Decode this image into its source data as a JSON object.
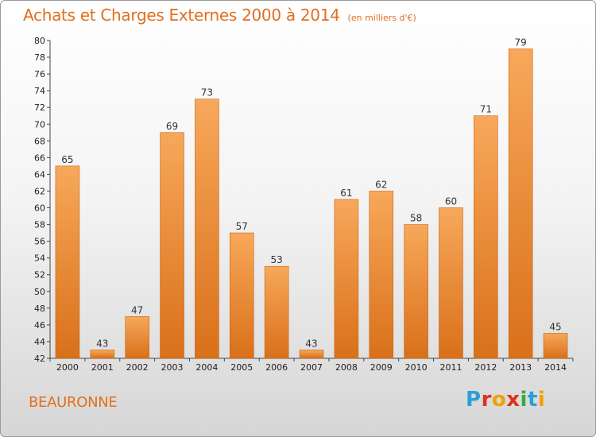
{
  "header": {
    "title": "Achats et Charges Externes 2000 à 2014",
    "subtitle": "(en milliers d'€)"
  },
  "footer": {
    "place": "BEAURONNE",
    "brand_letters": [
      "P",
      "r",
      "o",
      "x",
      "i",
      "t",
      "i"
    ],
    "brand_colors": [
      "#2a9fd8",
      "#e03020",
      "#f0a000",
      "#e03020",
      "#3aa83a",
      "#2a9fd8",
      "#f0a000"
    ]
  },
  "colors": {
    "bar_light": "#f7a85a",
    "bar_dark": "#d9701a"
  },
  "chart_data": {
    "type": "bar",
    "categories": [
      "2000",
      "2001",
      "2002",
      "2003",
      "2004",
      "2005",
      "2006",
      "2007",
      "2008",
      "2009",
      "2010",
      "2011",
      "2012",
      "2013",
      "2014"
    ],
    "values": [
      65,
      43,
      47,
      69,
      73,
      57,
      53,
      43,
      61,
      62,
      58,
      60,
      71,
      79,
      45
    ],
    "data_labels": [
      "65",
      "43",
      "47",
      "69",
      "73",
      "57",
      "53",
      "43",
      "61",
      "62",
      "58",
      "60",
      "71",
      "79",
      "45"
    ],
    "ylim": [
      42,
      80
    ],
    "yticks": [
      "42",
      "44",
      "46",
      "48",
      "50",
      "52",
      "54",
      "56",
      "58",
      "60",
      "62",
      "64",
      "66",
      "68",
      "70",
      "72",
      "74",
      "76",
      "78",
      "80"
    ],
    "grid": false
  }
}
